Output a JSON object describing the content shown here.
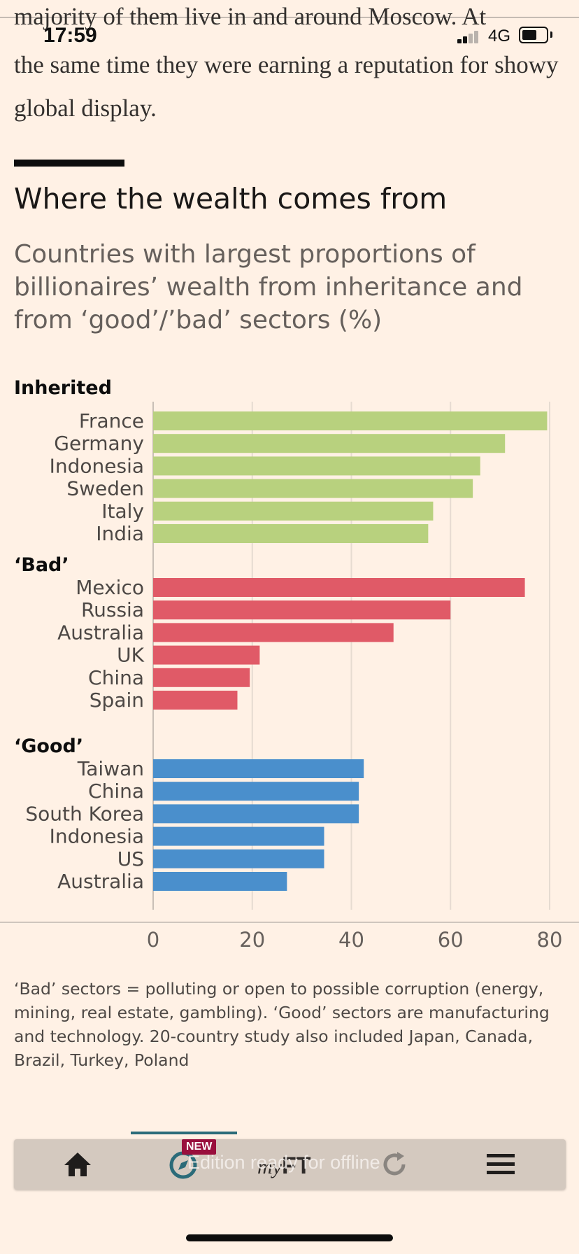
{
  "status_bar": {
    "time": "17:59",
    "network": "4G"
  },
  "article": {
    "cut_line": "majority of them live in and around Moscow. At",
    "text": "the same time they were earning a reputation for showy global display."
  },
  "chart_title": "Where the wealth comes from",
  "chart_subtitle": "Countries with largest proportions of billionaires’ wealth from inheritance and from ‘good’/’bad’ sectors (%)",
  "colors": {
    "inherited": "#B8D17E",
    "bad": "#E05A67",
    "good": "#4A8FCC",
    "background": "#FFF1E5"
  },
  "chart_data": {
    "type": "bar",
    "orientation": "horizontal",
    "xlim": [
      0,
      80
    ],
    "xticks": [
      "0",
      "20",
      "40",
      "60",
      "80"
    ],
    "grid": true,
    "groups": [
      {
        "name": "Inherited",
        "color": "#B8D17E",
        "categories": [
          "France",
          "Germany",
          "Indonesia",
          "Sweden",
          "Italy",
          "India"
        ],
        "values": [
          79.5,
          71,
          66,
          64.5,
          56.5,
          55.5
        ]
      },
      {
        "name": "‘Bad’",
        "color": "#E05A67",
        "categories": [
          "Mexico",
          "Russia",
          "Australia",
          "UK",
          "China",
          "Spain"
        ],
        "values": [
          75,
          60,
          48.5,
          21.5,
          19.5,
          17
        ]
      },
      {
        "name": "‘Good’",
        "color": "#4A8FCC",
        "categories": [
          "Taiwan",
          "China",
          "South Korea",
          "Indonesia",
          "US",
          "Australia"
        ],
        "values": [
          42.5,
          41.5,
          41.5,
          34.5,
          34.5,
          27
        ]
      }
    ]
  },
  "note": "‘Bad’ sectors = polluting or open to possible corruption (energy, mining, real estate, gambling). ‘Good’ sectors are manufacturing and technology. 20-country study also included Japan, Canada, Brazil, Turkey, Poland",
  "toolbar": {
    "new_badge": "NEW",
    "toast": "Edition ready for offline",
    "myft_my": "my",
    "myft_ft": "FT",
    "icons": [
      "home-icon",
      "compass-icon",
      "refresh-icon",
      "menu-icon"
    ]
  }
}
